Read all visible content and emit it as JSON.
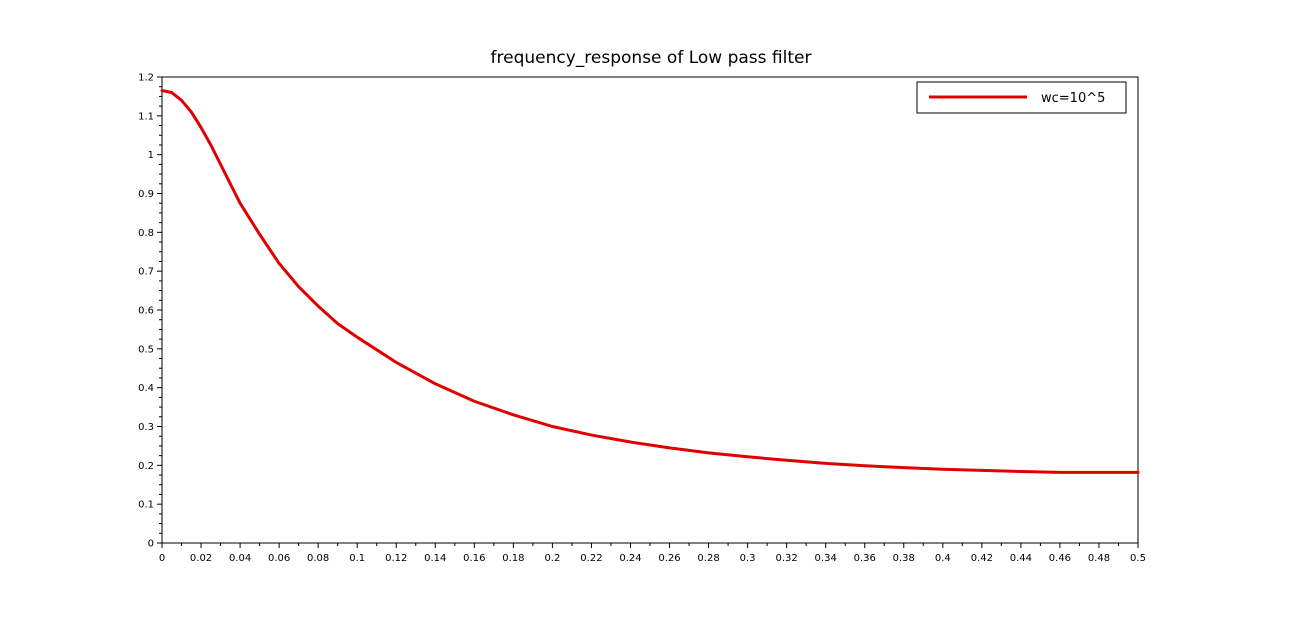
{
  "chart_data": {
    "type": "line",
    "title": "frequency_response of Low pass filter",
    "xlabel": "",
    "ylabel": "",
    "xlim": [
      0,
      0.5
    ],
    "ylim": [
      0,
      1.2
    ],
    "x_ticks": [
      0,
      0.02,
      0.04,
      0.06,
      0.08,
      0.1,
      0.12,
      0.14,
      0.16,
      0.18,
      0.2,
      0.22,
      0.24,
      0.26,
      0.28,
      0.3,
      0.32,
      0.34,
      0.36,
      0.38,
      0.4,
      0.42,
      0.44,
      0.46,
      0.48,
      0.5
    ],
    "x_tick_labels": [
      "0",
      "0.02",
      "0.04",
      "0.06",
      "0.08",
      "0.1",
      "0.12",
      "0.14",
      "0.16",
      "0.18",
      "0.2",
      "0.22",
      "0.24",
      "0.26",
      "0.28",
      "0.3",
      "0.32",
      "0.34",
      "0.36",
      "0.38",
      "0.4",
      "0.42",
      "0.44",
      "0.46",
      "0.48",
      "0.5"
    ],
    "y_ticks": [
      0,
      0.1,
      0.2,
      0.3,
      0.4,
      0.5,
      0.6,
      0.7,
      0.8,
      0.9,
      1,
      1.1,
      1.2
    ],
    "y_tick_labels": [
      "0",
      "0.1",
      "0.2",
      "0.3",
      "0.4",
      "0.5",
      "0.6",
      "0.7",
      "0.8",
      "0.9",
      "1",
      "1.1",
      "1.2"
    ],
    "grid": false,
    "legend_position": "top-right",
    "series": [
      {
        "name": "wc=10^5",
        "color": "#e00000",
        "x": [
          0,
          0.005,
          0.01,
          0.015,
          0.02,
          0.025,
          0.03,
          0.035,
          0.04,
          0.05,
          0.06,
          0.07,
          0.08,
          0.09,
          0.1,
          0.12,
          0.14,
          0.16,
          0.18,
          0.2,
          0.22,
          0.24,
          0.26,
          0.28,
          0.3,
          0.32,
          0.34,
          0.36,
          0.38,
          0.4,
          0.42,
          0.44,
          0.46,
          0.48,
          0.5
        ],
        "y": [
          1.165,
          1.16,
          1.14,
          1.11,
          1.07,
          1.025,
          0.975,
          0.925,
          0.875,
          0.795,
          0.72,
          0.66,
          0.61,
          0.565,
          0.53,
          0.465,
          0.41,
          0.365,
          0.33,
          0.3,
          0.278,
          0.26,
          0.245,
          0.232,
          0.222,
          0.213,
          0.205,
          0.199,
          0.194,
          0.19,
          0.187,
          0.184,
          0.182,
          0.182,
          0.182
        ]
      }
    ]
  }
}
